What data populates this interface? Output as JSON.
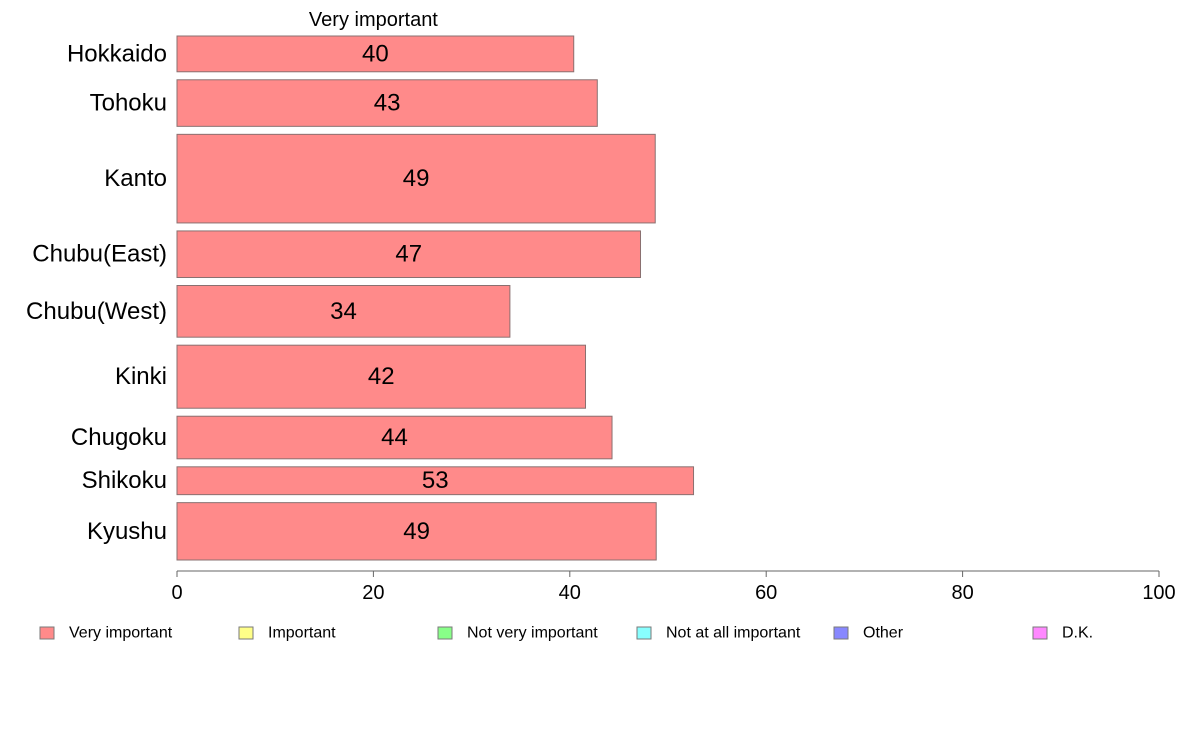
{
  "chart_data": {
    "type": "bar",
    "orientation": "horizontal",
    "title": "Very important",
    "categories": [
      "Hokkaido",
      "Tohoku",
      "Kanto",
      "Chubu(East)",
      "Chubu(West)",
      "Kinki",
      "Chugoku",
      "Shikoku",
      "Kyushu"
    ],
    "category_weights": [
      0.63,
      0.82,
      1.56,
      0.82,
      0.91,
      1.11,
      0.75,
      0.49,
      1.01
    ],
    "series": [
      {
        "name": "Very important",
        "values": [
          40.4,
          42.8,
          48.7,
          47.2,
          33.9,
          41.6,
          44.3,
          52.6,
          48.8
        ],
        "labels": [
          "40",
          "43",
          "49",
          "47",
          "34",
          "42",
          "44",
          "53",
          "49"
        ],
        "color": "#ff8a8a"
      }
    ],
    "xlim": [
      0,
      100
    ],
    "xticks": [
      0,
      20,
      40,
      60,
      80,
      100
    ],
    "xlabel": "",
    "ylabel": "",
    "grid": false,
    "legend_position": "bottom",
    "legend": [
      {
        "label": "Very important",
        "color": "#ff8a8a"
      },
      {
        "label": "Important",
        "color": "#ffff88"
      },
      {
        "label": "Not very important",
        "color": "#88ff88"
      },
      {
        "label": "Not at all important",
        "color": "#88ffff"
      },
      {
        "label": "Other",
        "color": "#8888ff"
      },
      {
        "label": "D.K.",
        "color": "#ff88ff"
      }
    ]
  }
}
